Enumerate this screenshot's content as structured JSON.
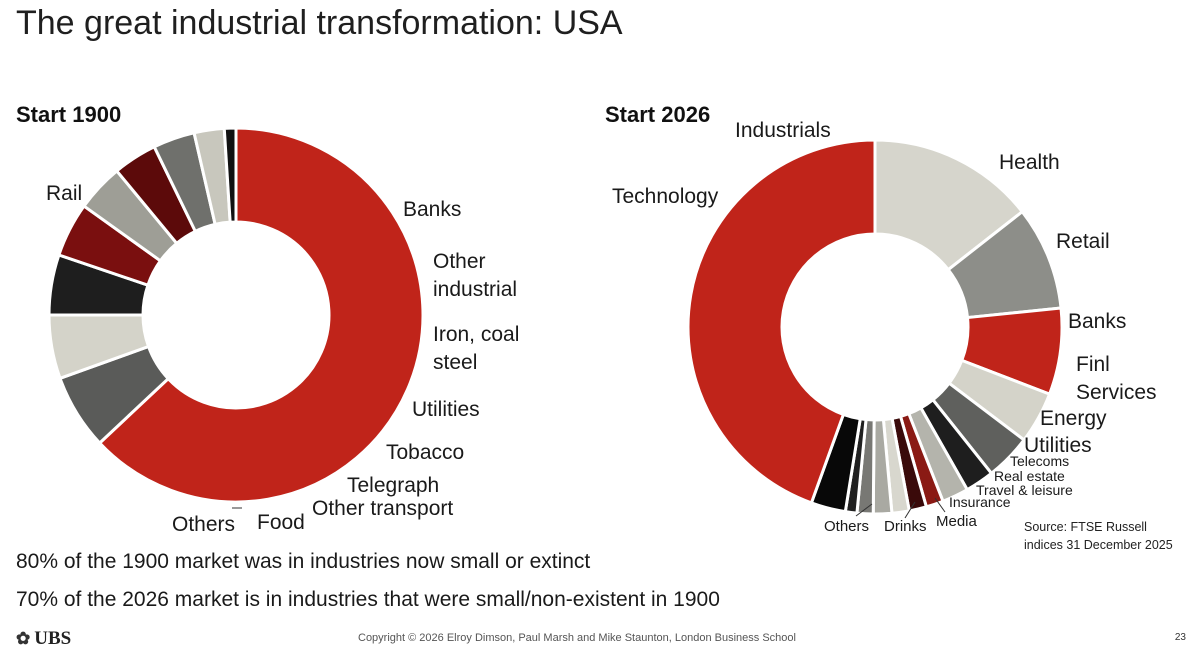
{
  "title": "The great industrial transformation: USA",
  "notes": [
    "80% of the 1900 market was in industries now small or extinct",
    "70% of the 2026 market is in industries that were small/non-existent in 1900"
  ],
  "source": [
    "Source: FTSE Russell",
    "indices 31 December 2025"
  ],
  "footer": {
    "logo": "UBS",
    "logo_icon": "ubs-keys-icon",
    "copyright": "Copyright © 2026 Elroy Dimson, Paul Marsh and Mike Staunton, London Business School",
    "page": "23"
  },
  "chart_data": [
    {
      "type": "pie",
      "subtype": "donut",
      "title": "Start 1900",
      "order": "clockwise from top",
      "unit": "percent of market (approximate)",
      "slices": [
        {
          "label": "Rail",
          "value": 63.0,
          "color": "#c0241a"
        },
        {
          "label": "Banks",
          "value": 6.5,
          "color": "#5a5b59"
        },
        {
          "label": "Other industrial",
          "value": 5.5,
          "color": "#d4d3c9"
        },
        {
          "label": "Iron, coal steel",
          "value": 5.2,
          "color": "#1e1e1e"
        },
        {
          "label": "Utilities",
          "value": 4.7,
          "color": "#7a0f0f"
        },
        {
          "label": "Tobacco",
          "value": 4.1,
          "color": "#9e9e96"
        },
        {
          "label": "Telegraph",
          "value": 3.8,
          "color": "#5c0a0a"
        },
        {
          "label": "Other transport",
          "value": 3.6,
          "color": "#6f706c"
        },
        {
          "label": "Food",
          "value": 2.6,
          "color": "#c8c7bd"
        },
        {
          "label": "Others",
          "value": 1.0,
          "color": "#111111"
        }
      ]
    },
    {
      "type": "pie",
      "subtype": "donut",
      "title": "Start 2026",
      "order": "clockwise from top",
      "unit": "percent of market (approximate)",
      "slices": [
        {
          "label": "Industrials",
          "value": 14.5,
          "color": "#d6d5cc"
        },
        {
          "label": "Health",
          "value": 9.0,
          "color": "#8d8e89"
        },
        {
          "label": "Retail",
          "value": 7.5,
          "color": "#c0241a"
        },
        {
          "label": "Banks",
          "value": 4.5,
          "color": "#d4d3c9"
        },
        {
          "label": "Finl Services",
          "value": 4.0,
          "color": "#5f605d"
        },
        {
          "label": "Energy",
          "value": 2.5,
          "color": "#1e1e1e"
        },
        {
          "label": "Utilities",
          "value": 2.3,
          "color": "#b4b4ac"
        },
        {
          "label": "Telecoms",
          "value": 1.5,
          "color": "#8a1a14"
        },
        {
          "label": "Real estate",
          "value": 1.5,
          "color": "#3a0a0a"
        },
        {
          "label": "Travel & leisure",
          "value": 1.5,
          "color": "#d8d7ce"
        },
        {
          "label": "Insurance",
          "value": 1.6,
          "color": "#a9a9a2"
        },
        {
          "label": "Media",
          "value": 1.4,
          "color": "#787874"
        },
        {
          "label": "Drinks",
          "value": 1.0,
          "color": "#202020"
        },
        {
          "label": "Others",
          "value": 3.0,
          "color": "#080808"
        },
        {
          "label": "Technology",
          "value": 44.7,
          "color": "#c0241a"
        }
      ]
    }
  ]
}
